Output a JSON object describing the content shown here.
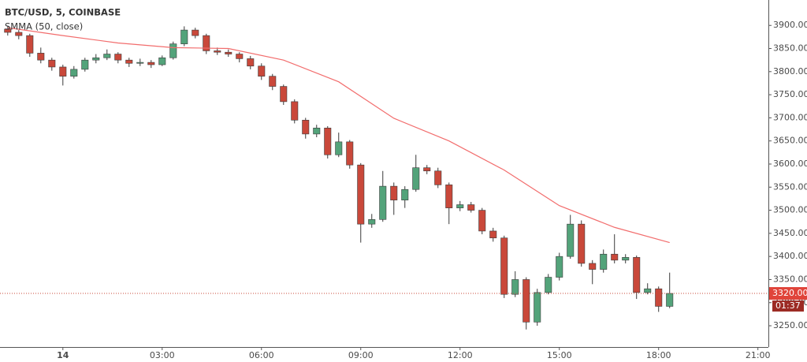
{
  "chart_data": {
    "type": "candlestick",
    "title": "BTC/USD, 5, COINBASE",
    "indicator": {
      "name": "SMMA (50, close)",
      "color": "#f26d6d",
      "x": [
        -100,
        0,
        100,
        200,
        300,
        400,
        500,
        600,
        700,
        800,
        900,
        1000,
        1100
      ],
      "values": [
        3895,
        3878,
        3862,
        3852,
        3850,
        3825,
        3778,
        3699,
        3650,
        3587,
        3510,
        3463,
        3430
      ]
    },
    "up_color": "#53a37a",
    "down_color": "#c9483a",
    "border_color": "#3a3a3a",
    "x": [
      -100,
      -80,
      -60,
      -40,
      -20,
      0,
      20,
      40,
      60,
      80,
      100,
      120,
      140,
      160,
      180,
      200,
      220,
      240,
      260,
      280,
      300,
      320,
      340,
      360,
      380,
      400,
      420,
      440,
      460,
      480,
      500,
      520,
      540,
      560,
      580,
      600,
      620,
      640,
      660,
      680,
      700,
      720,
      740,
      760,
      780,
      800,
      820,
      840,
      860,
      880,
      900,
      920,
      940,
      960,
      980,
      1000,
      1020,
      1040,
      1060,
      1080,
      1100
    ],
    "ohlc": [
      [
        3892,
        3898,
        3878,
        3885
      ],
      [
        3885,
        3890,
        3870,
        3878
      ],
      [
        3878,
        3882,
        3832,
        3840
      ],
      [
        3840,
        3852,
        3818,
        3825
      ],
      [
        3825,
        3830,
        3802,
        3810
      ],
      [
        3810,
        3815,
        3770,
        3790
      ],
      [
        3790,
        3812,
        3785,
        3805
      ],
      [
        3805,
        3830,
        3800,
        3825
      ],
      [
        3825,
        3838,
        3818,
        3830
      ],
      [
        3830,
        3848,
        3825,
        3838
      ],
      [
        3838,
        3842,
        3818,
        3825
      ],
      [
        3825,
        3830,
        3810,
        3818
      ],
      [
        3818,
        3828,
        3812,
        3820
      ],
      [
        3820,
        3825,
        3808,
        3815
      ],
      [
        3815,
        3835,
        3812,
        3830
      ],
      [
        3830,
        3865,
        3826,
        3860
      ],
      [
        3860,
        3898,
        3855,
        3890
      ],
      [
        3890,
        3895,
        3872,
        3878
      ],
      [
        3878,
        3882,
        3838,
        3845
      ],
      [
        3845,
        3852,
        3836,
        3842
      ],
      [
        3842,
        3848,
        3832,
        3838
      ],
      [
        3838,
        3842,
        3820,
        3828
      ],
      [
        3828,
        3834,
        3805,
        3812
      ],
      [
        3812,
        3818,
        3782,
        3790
      ],
      [
        3790,
        3795,
        3760,
        3768
      ],
      [
        3768,
        3772,
        3728,
        3735
      ],
      [
        3735,
        3740,
        3688,
        3695
      ],
      [
        3695,
        3700,
        3655,
        3665
      ],
      [
        3665,
        3685,
        3658,
        3678
      ],
      [
        3678,
        3682,
        3612,
        3620
      ],
      [
        3620,
        3668,
        3615,
        3648
      ],
      [
        3648,
        3652,
        3590,
        3598
      ],
      [
        3598,
        3602,
        3430,
        3470
      ],
      [
        3470,
        3492,
        3462,
        3480
      ],
      [
        3480,
        3585,
        3475,
        3552
      ],
      [
        3552,
        3560,
        3490,
        3522
      ],
      [
        3522,
        3552,
        3505,
        3545
      ],
      [
        3545,
        3620,
        3540,
        3592
      ],
      [
        3592,
        3598,
        3578,
        3585
      ],
      [
        3585,
        3592,
        3548,
        3555
      ],
      [
        3555,
        3560,
        3470,
        3505
      ],
      [
        3505,
        3520,
        3498,
        3512
      ],
      [
        3512,
        3518,
        3495,
        3500
      ],
      [
        3500,
        3505,
        3448,
        3455
      ],
      [
        3455,
        3462,
        3432,
        3440
      ],
      [
        3440,
        3445,
        3310,
        3318
      ],
      [
        3318,
        3368,
        3312,
        3350
      ],
      [
        3350,
        3355,
        3242,
        3258
      ],
      [
        3258,
        3330,
        3250,
        3322
      ],
      [
        3322,
        3362,
        3318,
        3355
      ],
      [
        3355,
        3408,
        3348,
        3400
      ],
      [
        3400,
        3490,
        3395,
        3470
      ],
      [
        3470,
        3478,
        3378,
        3385
      ],
      [
        3385,
        3392,
        3340,
        3372
      ],
      [
        3372,
        3415,
        3365,
        3405
      ],
      [
        3405,
        3448,
        3385,
        3392
      ],
      [
        3392,
        3405,
        3385,
        3398
      ],
      [
        3398,
        3402,
        3308,
        3322
      ],
      [
        3322,
        3342,
        3318,
        3330
      ],
      [
        3330,
        3335,
        3280,
        3292
      ],
      [
        3292,
        3365,
        3288,
        3320
      ]
    ],
    "last_price_label": "3320.00",
    "countdown": "01:37",
    "xlim": [
      -114,
      1279
    ],
    "xticks": [
      {
        "value": 0,
        "label": "14"
      },
      {
        "value": 180,
        "label": "03:00"
      },
      {
        "value": 360,
        "label": "06:00"
      },
      {
        "value": 540,
        "label": "09:00"
      },
      {
        "value": 720,
        "label": "12:00"
      },
      {
        "value": 900,
        "label": "15:00"
      },
      {
        "value": 1080,
        "label": "18:00"
      },
      {
        "value": 1260,
        "label": "21:00"
      }
    ],
    "ylim": [
      3204,
      3955
    ],
    "yticks": [
      {
        "value": 3250,
        "label": "3250.00"
      },
      {
        "value": 3300,
        "label": "3300.00"
      },
      {
        "value": 3350,
        "label": "3350.00"
      },
      {
        "value": 3400,
        "label": "3400.00"
      },
      {
        "value": 3450,
        "label": "3450.00"
      },
      {
        "value": 3500,
        "label": "3500.00"
      },
      {
        "value": 3550,
        "label": "3550.00"
      },
      {
        "value": 3600,
        "label": "3600.00"
      },
      {
        "value": 3650,
        "label": "3650.00"
      },
      {
        "value": 3700,
        "label": "3700.00"
      },
      {
        "value": 3750,
        "label": "3750.00"
      },
      {
        "value": 3800,
        "label": "3800.00"
      },
      {
        "value": 3850,
        "label": "3850.00"
      },
      {
        "value": 3900,
        "label": "3900.00"
      }
    ]
  }
}
